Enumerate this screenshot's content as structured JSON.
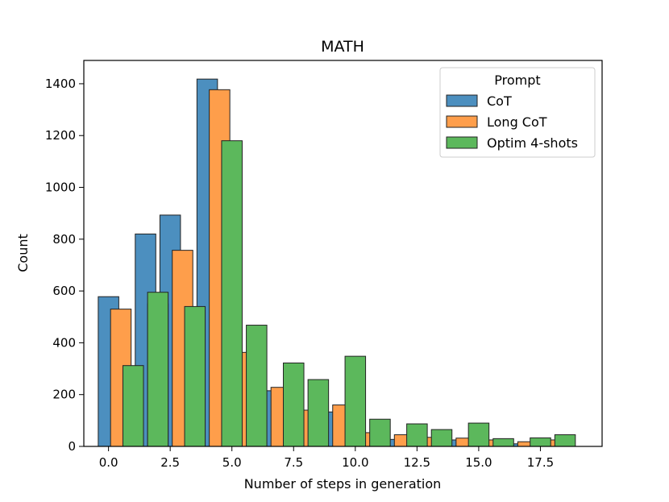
{
  "chart_data": {
    "type": "bar",
    "title": "MATH",
    "xlabel": "Number of steps in generation",
    "ylabel": "Count",
    "xlim": [
      -1.0,
      20.0
    ],
    "ylim": [
      0,
      1490
    ],
    "xticks": [
      0.0,
      2.5,
      5.0,
      7.5,
      10.0,
      12.5,
      15.0,
      17.5
    ],
    "xtick_labels": [
      "0.0",
      "2.5",
      "5.0",
      "7.5",
      "10.0",
      "12.5",
      "15.0",
      "17.5"
    ],
    "yticks": [
      0,
      200,
      400,
      600,
      800,
      1000,
      1200,
      1400
    ],
    "ytick_labels": [
      "0",
      "200",
      "400",
      "600",
      "800",
      "1000",
      "1200",
      "1400"
    ],
    "categories": [
      0,
      1,
      2,
      3,
      4,
      5,
      6,
      7,
      8,
      9,
      10,
      11,
      12,
      13,
      14,
      15,
      16,
      17,
      18
    ],
    "series": [
      {
        "name": "CoT",
        "color": "#4c8fbf",
        "values": [
          578,
          820,
          893,
          1418,
          352,
          215,
          130,
          133,
          47,
          27,
          20,
          25,
          12,
          10,
          15,
          0,
          0,
          0,
          0
        ]
      },
      {
        "name": "Long CoT",
        "color": "#fe9e4b",
        "values": [
          530,
          550,
          757,
          1377,
          363,
          228,
          140,
          160,
          53,
          45,
          35,
          32,
          25,
          18,
          25,
          0,
          0,
          0,
          0
        ]
      },
      {
        "name": "Optim 4-shots",
        "color": "#5cb85c",
        "values": [
          312,
          595,
          540,
          1180,
          468,
          322,
          258,
          348,
          105,
          87,
          65,
          90,
          30,
          33,
          45,
          0,
          0,
          0,
          0
        ]
      }
    ],
    "bin_positions": {
      "CoT": [
        0.0,
        1.5,
        2.5,
        4.0,
        5.0,
        6.5,
        7.5,
        9.0,
        10.0,
        11.5,
        12.5,
        14.0,
        15.0,
        16.5,
        17.5
      ],
      "Long CoT": [
        0.5,
        2.0,
        3.0,
        4.5,
        5.5,
        7.0,
        8.0,
        9.5,
        10.5,
        12.0,
        13.0,
        14.5,
        15.5,
        17.0,
        18.0
      ],
      "Optim 4-shots": [
        1.0,
        2.0,
        3.5,
        5.0,
        6.0,
        7.5,
        8.5,
        10.0,
        11.0,
        12.5,
        13.5,
        15.0,
        16.0,
        17.5,
        18.5
      ]
    },
    "bin_width": 0.833,
    "legend": {
      "title": "Prompt",
      "position": "top-right"
    }
  }
}
